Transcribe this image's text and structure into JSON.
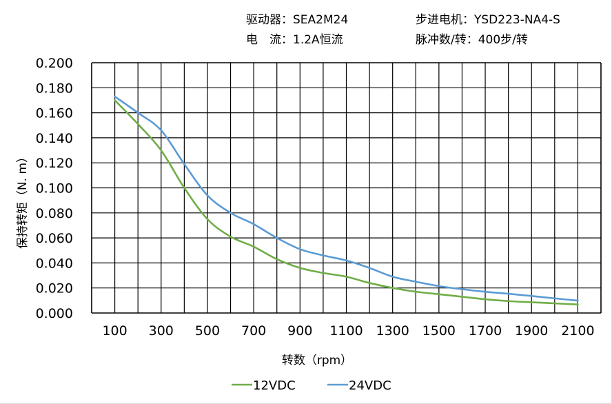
{
  "header": {
    "driver": "驱动器：SEA2M24",
    "motor": "步进电机：YSD223-NA4-S",
    "current": "电　流：1.2A恒流",
    "pulses": "脉冲数/转：400步/转"
  },
  "chart_data": {
    "type": "line",
    "title": "",
    "xlabel": "转数（rpm）",
    "ylabel": "保持转矩（N. m）",
    "xlim": [
      0,
      2200
    ],
    "ylim": [
      0,
      0.2
    ],
    "grid": true,
    "legend_position": "bottom",
    "x_ticks": [
      "100",
      "300",
      "500",
      "700",
      "900",
      "1100",
      "1300",
      "1500",
      "1700",
      "1900",
      "2100"
    ],
    "y_ticks": [
      "0.000",
      "0.020",
      "0.040",
      "0.060",
      "0.080",
      "0.100",
      "0.120",
      "0.140",
      "0.160",
      "0.180",
      "0.200"
    ],
    "x": [
      100,
      200,
      300,
      400,
      500,
      600,
      700,
      800,
      900,
      1000,
      1100,
      1200,
      1300,
      1400,
      1500,
      1600,
      1700,
      1800,
      1900,
      2000,
      2100
    ],
    "series": [
      {
        "name": "12VDC",
        "color": "#70ad47",
        "values": [
          0.17,
          0.151,
          0.13,
          0.1,
          0.075,
          0.061,
          0.053,
          0.043,
          0.036,
          0.032,
          0.029,
          0.024,
          0.02,
          0.017,
          0.015,
          0.013,
          0.011,
          0.0095,
          0.0086,
          0.0077,
          0.0068
        ]
      },
      {
        "name": "24VDC",
        "color": "#5b9bd5",
        "values": [
          0.173,
          0.16,
          0.146,
          0.119,
          0.094,
          0.08,
          0.071,
          0.06,
          0.051,
          0.046,
          0.042,
          0.036,
          0.029,
          0.025,
          0.0215,
          0.019,
          0.017,
          0.0154,
          0.0136,
          0.0117,
          0.0099
        ]
      }
    ]
  }
}
